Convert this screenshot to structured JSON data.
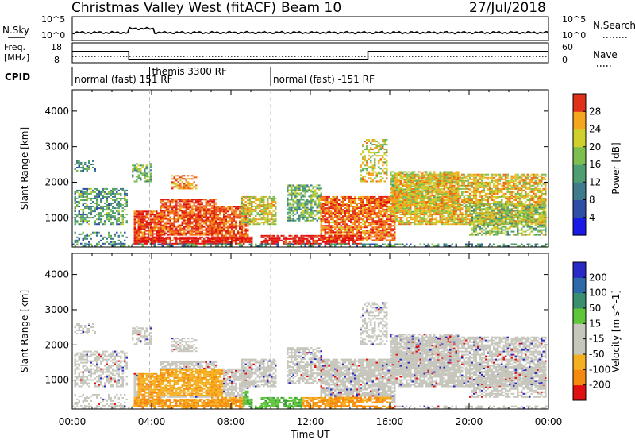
{
  "header": {
    "radar": "Christmas Valley West (fitACF)",
    "beam": "Beam 10",
    "date": "27/Jul/2018"
  },
  "strip": {
    "nsky_label": "N.Sky",
    "nsearch_label": "N.Search",
    "freq_label_1": "Freq.",
    "freq_label_2": "[MHz]",
    "nave_label": "Nave",
    "cpid_label": "CPID",
    "left_ticks_top": [
      "10^5",
      "10^0"
    ],
    "right_ticks_top": [
      "10^5",
      "10^0"
    ],
    "left_ticks_freq": [
      "18",
      "8"
    ],
    "right_ticks_freq": [
      "60",
      "0"
    ]
  },
  "cpid_segments": [
    {
      "start_h": 0,
      "text": "normal (fast) 151 RF"
    },
    {
      "start_h": 3.9,
      "text": "themis 3300 RF"
    },
    {
      "start_h": 10,
      "text": "normal (fast) -151 RF"
    }
  ],
  "colors": {
    "power": [
      "#1a1ae6",
      "#2e4ea8",
      "#3f7b8c",
      "#4f9e72",
      "#7cbf4f",
      "#cfd02c",
      "#f5a51e",
      "#f06a16",
      "#e0301a",
      "#e01010"
    ],
    "velocity": [
      "#2929c6",
      "#2f6aa8",
      "#3a8f6e",
      "#5fc63a",
      "#c6c6bc",
      "#c6c6bc",
      "#f5b020",
      "#f58a10",
      "#f05a10",
      "#e01010"
    ]
  },
  "chart_data": [
    {
      "type": "heatmap",
      "title": "Christmas Valley West (fitACF) Beam 10 27/Jul/2018",
      "xlabel": "Time UT",
      "ylabel": "Slant Range [km]",
      "xlim": [
        0,
        24
      ],
      "ylim": [
        180,
        4600
      ],
      "xticks": [
        "00:00",
        "04:00",
        "08:00",
        "12:00",
        "16:00",
        "20:00",
        "00:00"
      ],
      "yticks": [
        "1000",
        "2000",
        "3000",
        "4000"
      ],
      "colorbar": {
        "label": "Power [dB]",
        "range": [
          0,
          32
        ],
        "ticks": [
          "4",
          "8",
          "12",
          "16",
          "20",
          "24",
          "28"
        ]
      }
    },
    {
      "type": "heatmap",
      "xlabel": "Time UT",
      "ylabel": "Slant Range [km]",
      "xlim": [
        0,
        24
      ],
      "ylim": [
        180,
        4600
      ],
      "xticks": [
        "00:00",
        "04:00",
        "08:00",
        "12:00",
        "16:00",
        "20:00",
        "00:00"
      ],
      "yticks": [
        "1000",
        "2000",
        "3000",
        "4000"
      ],
      "colorbar": {
        "label": "Velocity [m s^-1]",
        "ticks": [
          "200",
          "100",
          "50",
          "15",
          "-15",
          "-50",
          "-100",
          "-200"
        ]
      }
    }
  ],
  "frequency_series": {
    "points": [
      [
        0,
        13.8
      ],
      [
        2.85,
        13.8
      ],
      [
        2.85,
        9.0
      ],
      [
        14.9,
        9.0
      ],
      [
        14.9,
        13.8
      ],
      [
        24,
        13.8
      ]
    ]
  }
}
